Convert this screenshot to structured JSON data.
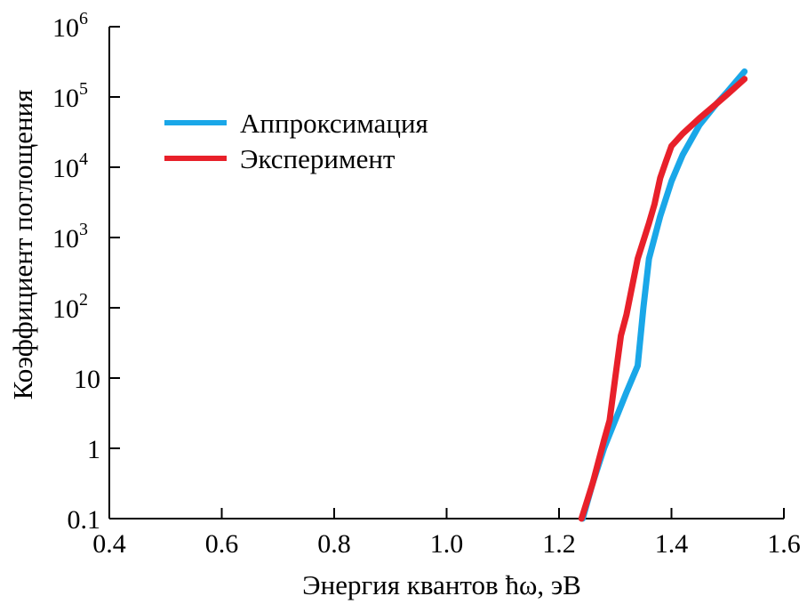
{
  "chart_data": {
    "type": "line",
    "xlabel": "Энергия квантов ħω, эВ",
    "ylabel": "Коэффициент поглощения",
    "x_scale": "linear",
    "y_scale": "log",
    "xlim": [
      0.4,
      1.6
    ],
    "ylim": [
      0.1,
      1000000
    ],
    "x_ticks": [
      {
        "value": 0.4,
        "label": "0.4"
      },
      {
        "value": 0.6,
        "label": "0.6"
      },
      {
        "value": 0.8,
        "label": "0.8"
      },
      {
        "value": 1.0,
        "label": "1.0"
      },
      {
        "value": 1.2,
        "label": "1.2"
      },
      {
        "value": 1.4,
        "label": "1.4"
      },
      {
        "value": 1.6,
        "label": "1.6"
      }
    ],
    "y_ticks": [
      {
        "value": 0.1,
        "base": "0.1",
        "exp": ""
      },
      {
        "value": 1,
        "base": "1",
        "exp": ""
      },
      {
        "value": 10,
        "base": "10",
        "exp": ""
      },
      {
        "value": 100,
        "base": "10",
        "exp": "2"
      },
      {
        "value": 1000,
        "base": "10",
        "exp": "3"
      },
      {
        "value": 10000,
        "base": "10",
        "exp": "4"
      },
      {
        "value": 100000,
        "base": "10",
        "exp": "5"
      },
      {
        "value": 1000000,
        "base": "10",
        "exp": "6"
      }
    ],
    "grid": false,
    "legend_position": "upper-left",
    "series": [
      {
        "name": "Аппроксимация",
        "color": "#1aa7e8",
        "x": [
          1.242,
          1.26,
          1.28,
          1.3,
          1.32,
          1.34,
          1.35,
          1.36,
          1.38,
          1.4,
          1.42,
          1.45,
          1.48,
          1.5,
          1.53
        ],
        "y": [
          0.1,
          0.32,
          1.0,
          2.5,
          6.3,
          15,
          100,
          500,
          2000,
          6300,
          15000,
          40000,
          80000,
          120000,
          230000
        ]
      },
      {
        "name": "Эксперимент",
        "color": "#e8202a",
        "x": [
          1.24,
          1.26,
          1.28,
          1.29,
          1.3,
          1.31,
          1.32,
          1.33,
          1.34,
          1.36,
          1.37,
          1.38,
          1.39,
          1.4,
          1.42,
          1.45,
          1.48,
          1.5,
          1.53
        ],
        "y": [
          0.1,
          0.32,
          1.3,
          2.5,
          10,
          40,
          80,
          200,
          500,
          1600,
          3000,
          7000,
          12000,
          20000,
          30000,
          50000,
          80000,
          110000,
          180000
        ]
      }
    ]
  }
}
